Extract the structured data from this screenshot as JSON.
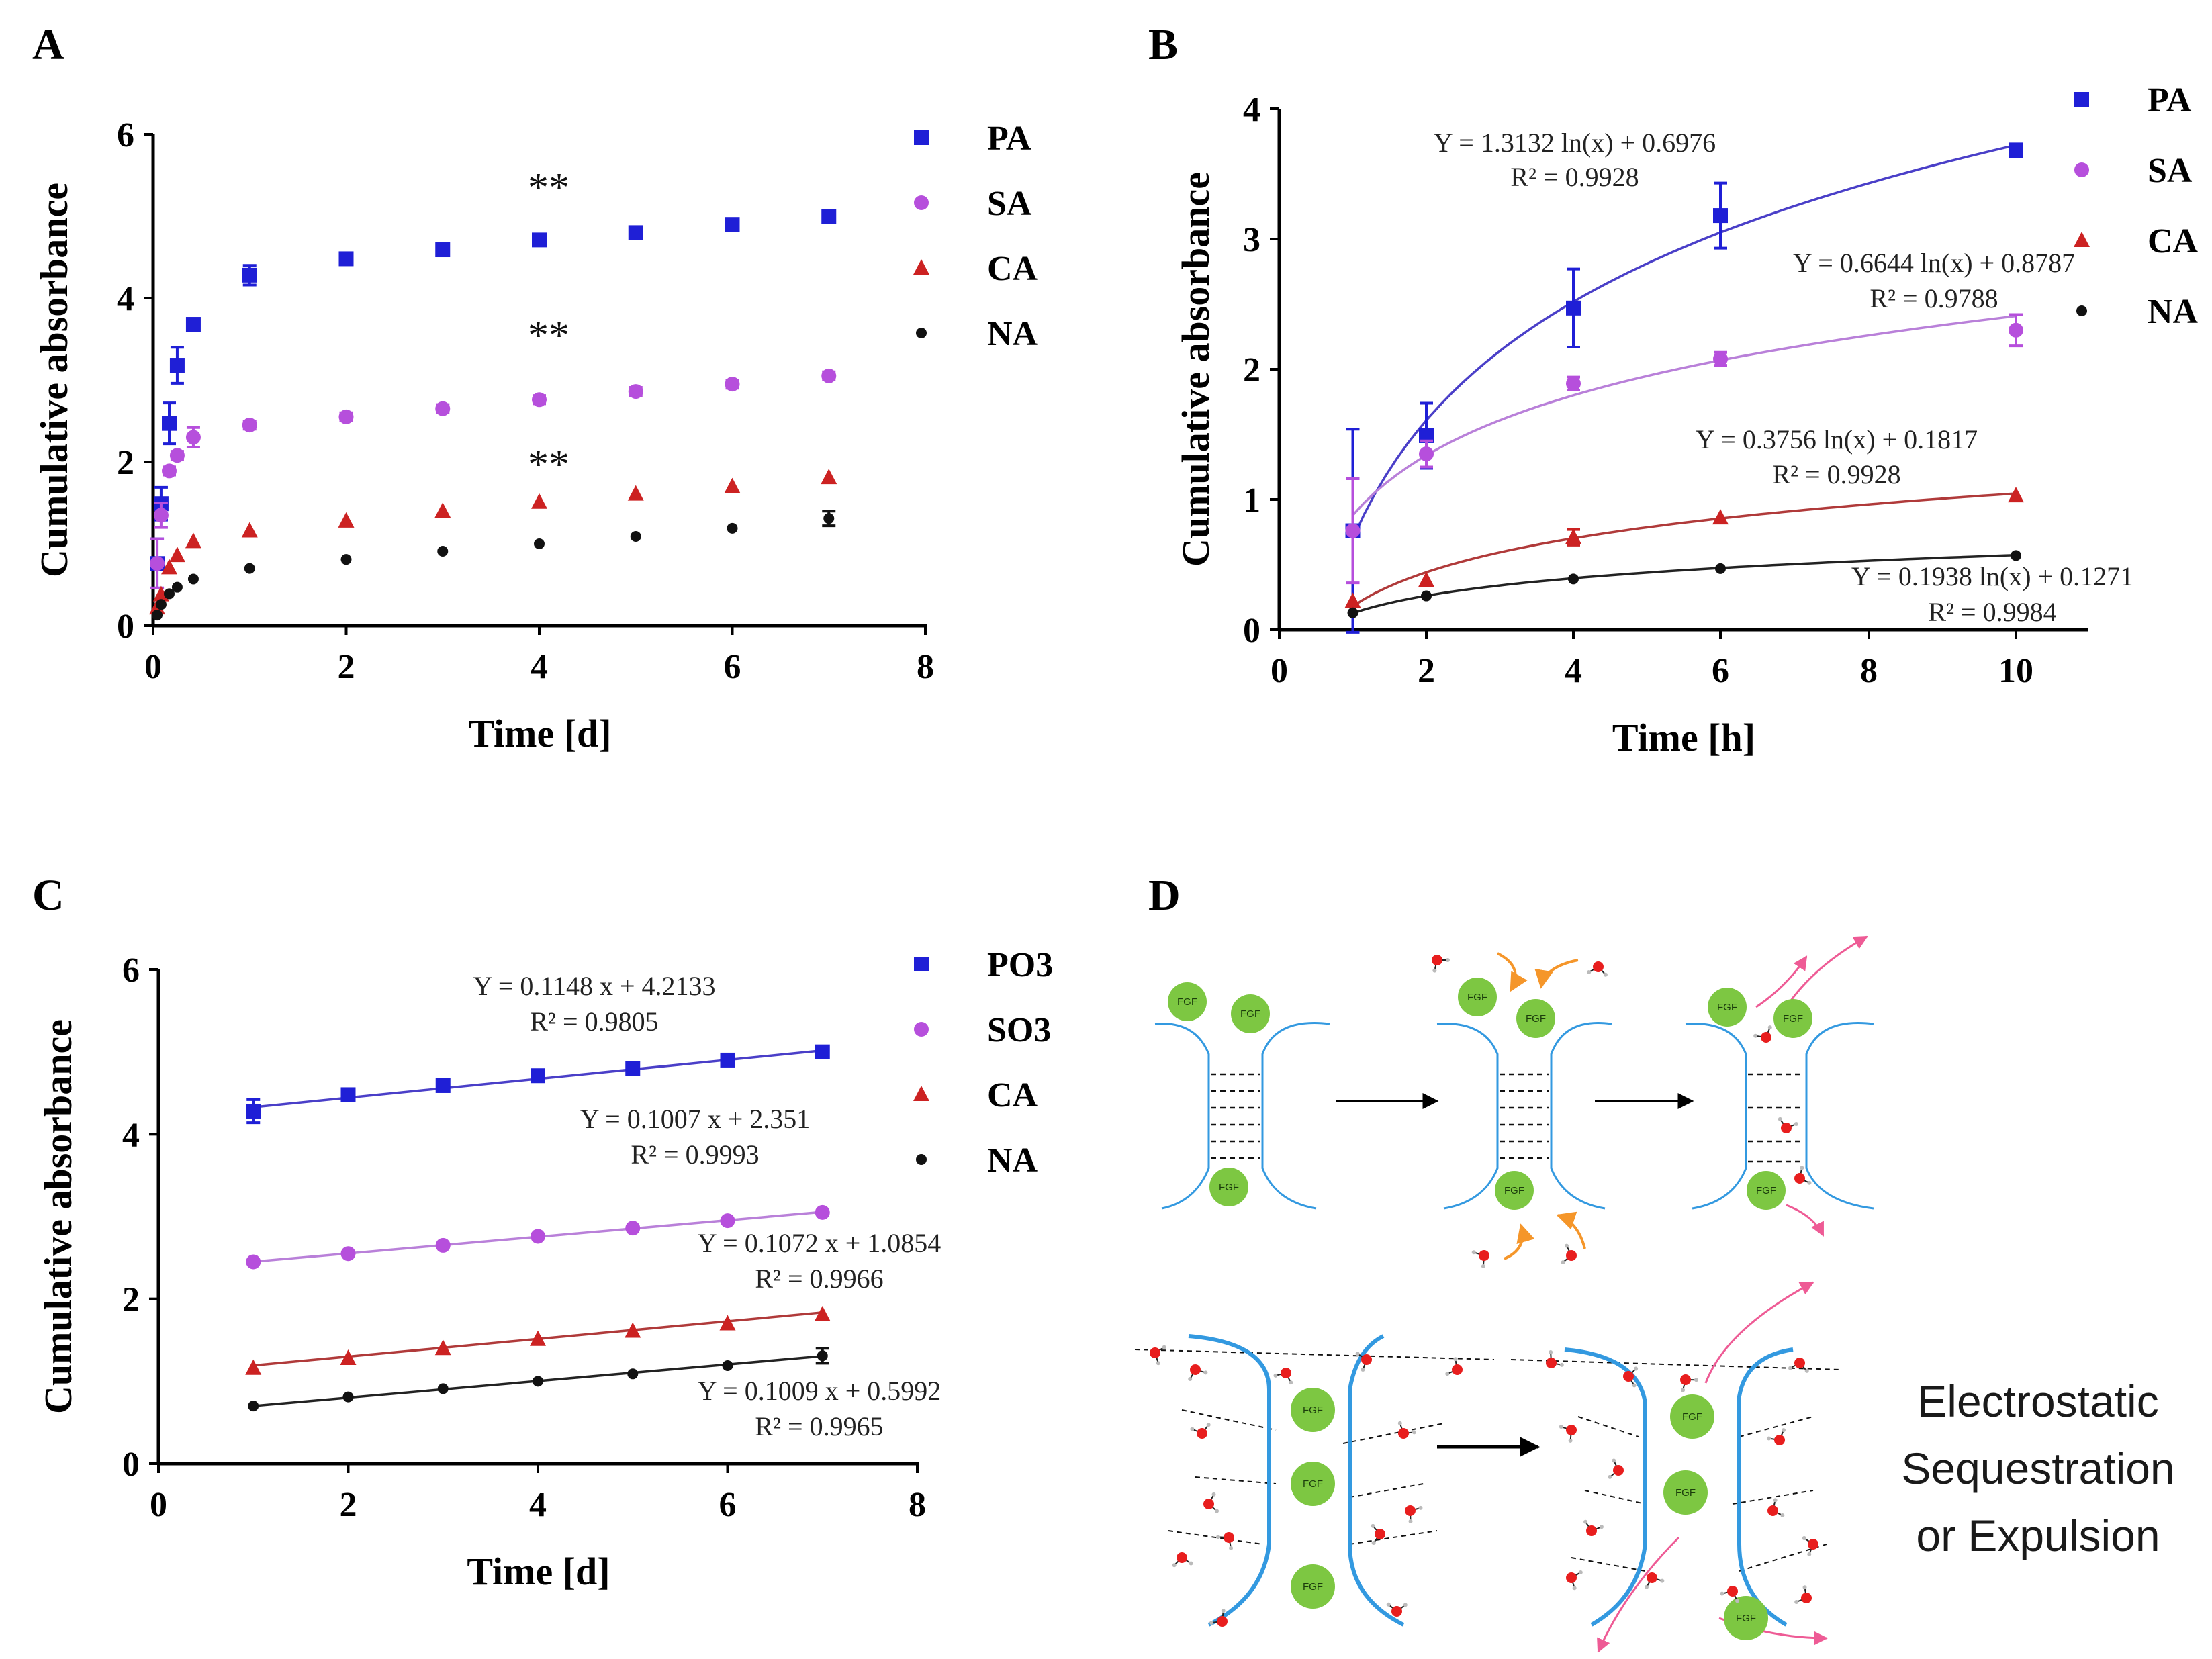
{
  "panels": {
    "a": "A",
    "b": "B",
    "c": "C",
    "d": "D"
  },
  "chart_data": [
    {
      "id": "A",
      "type": "scatter",
      "xlabel": "Time [d]",
      "ylabel": "Cumulative absorbance",
      "xlim": [
        0,
        8
      ],
      "ylim": [
        0,
        6
      ],
      "xticks": [
        "0",
        "2",
        "4",
        "6",
        "8"
      ],
      "yticks": [
        "0",
        "2",
        "4",
        "6"
      ],
      "legend_position": "right",
      "annotations": [
        "**",
        "**",
        "**"
      ],
      "series": [
        {
          "name": "PA",
          "color": "#1f1fd6",
          "marker": "square",
          "x": [
            0.042,
            0.083,
            0.167,
            0.25,
            0.417,
            1,
            2,
            3,
            4,
            5,
            6,
            7
          ],
          "y": [
            0.76,
            1.49,
            2.47,
            3.18,
            3.68,
            4.28,
            4.48,
            4.59,
            4.71,
            4.8,
            4.9,
            5.0
          ],
          "err": [
            0.3,
            0.2,
            0.25,
            0.22,
            0.05,
            0.12,
            0.05,
            0.05,
            0.05,
            0.05,
            0.05,
            0.05
          ]
        },
        {
          "name": "SA",
          "color": "#b64fdc",
          "marker": "circle",
          "x": [
            0.042,
            0.083,
            0.167,
            0.25,
            0.417,
            1,
            2,
            3,
            4,
            5,
            6,
            7
          ],
          "y": [
            0.76,
            1.35,
            1.89,
            2.08,
            2.3,
            2.45,
            2.55,
            2.65,
            2.76,
            2.86,
            2.95,
            3.05
          ],
          "err": [
            0.3,
            0.15,
            0.05,
            0.05,
            0.12,
            0.05,
            0.05,
            0.05,
            0.05,
            0.05,
            0.05,
            0.05
          ]
        },
        {
          "name": "CA",
          "color": "#cc2222",
          "marker": "triangle",
          "x": [
            0.042,
            0.083,
            0.167,
            0.25,
            0.417,
            1,
            2,
            3,
            4,
            5,
            6,
            7
          ],
          "y": [
            0.22,
            0.38,
            0.71,
            0.86,
            1.03,
            1.16,
            1.28,
            1.4,
            1.51,
            1.61,
            1.7,
            1.81
          ],
          "err": [
            0,
            0,
            0,
            0,
            0,
            0,
            0,
            0,
            0,
            0,
            0,
            0
          ]
        },
        {
          "name": "NA",
          "color": "#111111",
          "marker": "circle",
          "x": [
            0.042,
            0.083,
            0.167,
            0.25,
            0.417,
            1,
            2,
            3,
            4,
            5,
            6,
            7
          ],
          "y": [
            0.13,
            0.26,
            0.39,
            0.47,
            0.57,
            0.7,
            0.81,
            0.91,
            1.0,
            1.09,
            1.19,
            1.31
          ],
          "err": [
            0,
            0,
            0,
            0,
            0,
            0,
            0,
            0,
            0,
            0,
            0,
            0.09
          ]
        }
      ]
    },
    {
      "id": "B",
      "type": "scatter",
      "xlabel": "Time [h]",
      "ylabel": "Cumulative absorbance",
      "xticks": [
        "0",
        "2",
        "4",
        "6",
        "8",
        "10"
      ],
      "yticks": [
        "0",
        "1",
        "2",
        "3",
        "4"
      ],
      "ylim": [
        0,
        4
      ],
      "legend_position": "right",
      "series": [
        {
          "name": "PA",
          "color": "#1f1fd6",
          "marker": "square",
          "x": [
            1,
            2,
            4,
            6,
            10
          ],
          "y": [
            0.76,
            1.49,
            2.47,
            3.18,
            3.68
          ],
          "err": [
            0.78,
            0.25,
            0.3,
            0.25,
            0.05
          ],
          "fit": {
            "a": 1.3132,
            "b": 0.6976
          },
          "equation": "Y = 1.3132 ln(x) + 0.6976",
          "r2": "R² = 0.9928"
        },
        {
          "name": "SA",
          "color": "#b64fdc",
          "marker": "circle",
          "x": [
            1,
            2,
            4,
            6,
            10
          ],
          "y": [
            0.76,
            1.35,
            1.89,
            2.08,
            2.3
          ],
          "err": [
            0.4,
            0.1,
            0.05,
            0.05,
            0.12
          ],
          "fit": {
            "a": 0.6644,
            "b": 0.8787
          },
          "equation": "Y = 0.6644 ln(x) + 0.8787",
          "r2": "R² = 0.9788"
        },
        {
          "name": "CA",
          "color": "#cc2222",
          "marker": "triangle",
          "x": [
            1,
            2,
            4,
            6,
            10
          ],
          "y": [
            0.22,
            0.38,
            0.71,
            0.86,
            1.03
          ],
          "err": [
            0,
            0,
            0.06,
            0,
            0
          ],
          "fit": {
            "a": 0.3756,
            "b": 0.1817
          },
          "equation": "Y = 0.3756 ln(x) + 0.1817",
          "r2": "R² = 0.9928"
        },
        {
          "name": "NA",
          "color": "#111111",
          "marker": "circle",
          "x": [
            1,
            2,
            4,
            6,
            10
          ],
          "y": [
            0.13,
            0.26,
            0.39,
            0.47,
            0.57
          ],
          "err": [
            0,
            0,
            0,
            0,
            0
          ],
          "fit": {
            "a": 0.1938,
            "b": 0.1271
          },
          "equation": "Y = 0.1938 ln(x) + 0.1271",
          "r2": "R² = 0.9984"
        }
      ]
    },
    {
      "id": "C",
      "type": "scatter",
      "xlabel": "Time [d]",
      "ylabel": "Cumulative absorbance",
      "xlim": [
        0,
        8
      ],
      "ylim": [
        0,
        6
      ],
      "xticks": [
        "0",
        "2",
        "4",
        "6",
        "8"
      ],
      "yticks": [
        "0",
        "2",
        "4",
        "6"
      ],
      "legend_position": "right",
      "series": [
        {
          "name": "PO3",
          "color": "#1f1fd6",
          "marker": "square",
          "x": [
            1,
            2,
            3,
            4,
            5,
            6,
            7
          ],
          "y": [
            4.28,
            4.48,
            4.59,
            4.71,
            4.8,
            4.9,
            5.0
          ],
          "err": [
            0.14,
            0,
            0,
            0,
            0,
            0,
            0.05
          ],
          "fit": {
            "m": 0.1148,
            "c": 4.2133
          },
          "equation": "Y = 0.1148 x + 4.2133",
          "r2": "R² = 0.9805"
        },
        {
          "name": "SO3",
          "color": "#b64fdc",
          "marker": "circle",
          "x": [
            1,
            2,
            3,
            4,
            5,
            6,
            7
          ],
          "y": [
            2.45,
            2.55,
            2.65,
            2.76,
            2.86,
            2.95,
            3.05
          ],
          "err": [
            0,
            0,
            0,
            0,
            0,
            0,
            0
          ],
          "fit": {
            "m": 0.1007,
            "c": 2.351
          },
          "equation": "Y = 0.1007 x + 2.351",
          "r2": "R² = 0.9993"
        },
        {
          "name": "CA",
          "color": "#cc2222",
          "marker": "triangle",
          "x": [
            1,
            2,
            3,
            4,
            5,
            6,
            7
          ],
          "y": [
            1.16,
            1.28,
            1.4,
            1.51,
            1.61,
            1.7,
            1.81
          ],
          "err": [
            0,
            0,
            0,
            0,
            0,
            0,
            0
          ],
          "fit": {
            "m": 0.1072,
            "c": 1.0854
          },
          "equation": "Y = 0.1072 x + 1.0854",
          "r2": "R² = 0.9966"
        },
        {
          "name": "NA",
          "color": "#111111",
          "marker": "circle",
          "x": [
            1,
            2,
            3,
            4,
            5,
            6,
            7
          ],
          "y": [
            0.7,
            0.81,
            0.91,
            1.0,
            1.09,
            1.19,
            1.31
          ],
          "err": [
            0,
            0,
            0,
            0,
            0,
            0,
            0.09
          ],
          "fit": {
            "m": 0.1009,
            "c": 0.5992
          },
          "equation": "Y = 0.1009 x + 0.5992",
          "r2": "R² = 0.9965"
        }
      ]
    }
  ],
  "diagram": {
    "fgf_label": "FGF",
    "caption": [
      "Electrostatic",
      "Sequestration",
      "or Expulsion"
    ],
    "colors": {
      "fgf": "#7dc742",
      "polymer": "#3399e0",
      "oxygen": "#e81e1e",
      "orange_arrow": "#f5962a",
      "pink_arrow": "#ee5b95"
    }
  }
}
